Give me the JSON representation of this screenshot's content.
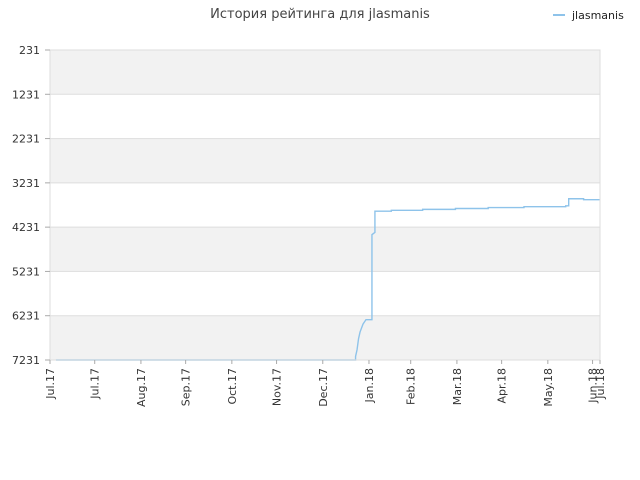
{
  "chart_data": {
    "type": "line",
    "title": "История рейтинга для jlasmanis",
    "legend": {
      "position": "top-right",
      "entries": [
        "jlasmanis"
      ]
    },
    "series": [
      {
        "name": "jlasmanis",
        "color": "#8ec3ea",
        "points": [
          {
            "x": "2017-07-05",
            "y": 7231
          },
          {
            "x": "2018-01-22",
            "y": 7231
          },
          {
            "x": "2018-01-22",
            "y": 7150
          },
          {
            "x": "2018-01-23",
            "y": 7000
          },
          {
            "x": "2018-01-24",
            "y": 6750
          },
          {
            "x": "2018-01-25",
            "y": 6600
          },
          {
            "x": "2018-01-27",
            "y": 6420
          },
          {
            "x": "2018-01-29",
            "y": 6320
          },
          {
            "x": "2018-02-02",
            "y": 6320
          },
          {
            "x": "2018-02-02",
            "y": 4400
          },
          {
            "x": "2018-02-04",
            "y": 4350
          },
          {
            "x": "2018-02-04",
            "y": 3870
          },
          {
            "x": "2018-02-15",
            "y": 3870
          },
          {
            "x": "2018-02-15",
            "y": 3850
          },
          {
            "x": "2018-03-08",
            "y": 3850
          },
          {
            "x": "2018-03-08",
            "y": 3830
          },
          {
            "x": "2018-03-30",
            "y": 3830
          },
          {
            "x": "2018-03-30",
            "y": 3810
          },
          {
            "x": "2018-04-21",
            "y": 3810
          },
          {
            "x": "2018-04-21",
            "y": 3790
          },
          {
            "x": "2018-05-15",
            "y": 3790
          },
          {
            "x": "2018-05-15",
            "y": 3770
          },
          {
            "x": "2018-06-12",
            "y": 3770
          },
          {
            "x": "2018-06-12",
            "y": 3750
          },
          {
            "x": "2018-06-14",
            "y": 3750
          },
          {
            "x": "2018-06-14",
            "y": 3590
          },
          {
            "x": "2018-06-24",
            "y": 3590
          },
          {
            "x": "2018-06-24",
            "y": 3610
          },
          {
            "x": "2018-07-05",
            "y": 3610
          }
        ]
      }
    ],
    "x_axis": {
      "type": "date",
      "range": [
        "2017-07-01",
        "2018-07-05"
      ],
      "ticks": [
        {
          "value": "2017-07-01",
          "label": "Jul.17"
        },
        {
          "value": "2017-07-31",
          "label": "Jul.17"
        },
        {
          "value": "2017-08-31",
          "label": "Aug.17"
        },
        {
          "value": "2017-09-30",
          "label": "Sep.17"
        },
        {
          "value": "2017-10-31",
          "label": "Oct.17"
        },
        {
          "value": "2017-11-30",
          "label": "Nov.17"
        },
        {
          "value": "2017-12-31",
          "label": "Dec.17"
        },
        {
          "value": "2018-01-31",
          "label": "Jan.18"
        },
        {
          "value": "2018-02-28",
          "label": "Feb.18"
        },
        {
          "value": "2018-03-31",
          "label": "Mar.18"
        },
        {
          "value": "2018-04-30",
          "label": "Apr.18"
        },
        {
          "value": "2018-05-31",
          "label": "May.18"
        },
        {
          "value": "2018-06-30",
          "label": "Jun.18"
        },
        {
          "value": "2018-07-05",
          "label": "Jul.18"
        }
      ],
      "label_rotation": "vertical"
    },
    "y_axis": {
      "inverted": true,
      "range": [
        231,
        7231
      ],
      "ticks": [
        {
          "value": 231,
          "label": "231"
        },
        {
          "value": 1231,
          "label": "1231"
        },
        {
          "value": 2231,
          "label": "2231"
        },
        {
          "value": 3231,
          "label": "3231"
        },
        {
          "value": 4231,
          "label": "4231"
        },
        {
          "value": 5231,
          "label": "5231"
        },
        {
          "value": 6231,
          "label": "6231"
        },
        {
          "value": 7231,
          "label": "7231"
        }
      ]
    },
    "grid": true,
    "band_colors": [
      "#f2f2f2",
      "#ffffff"
    ],
    "grid_color": "#dddddd",
    "border_color": "#dddddd"
  }
}
